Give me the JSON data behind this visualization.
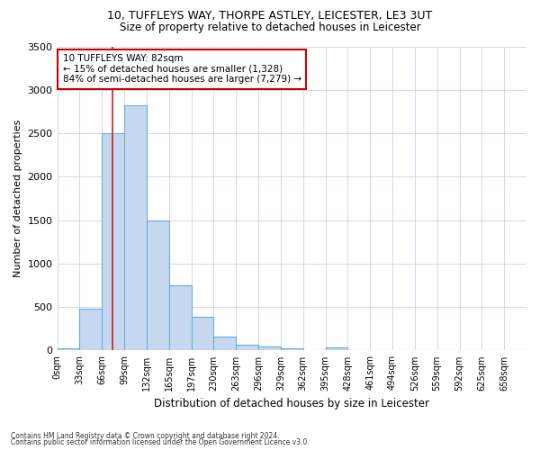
{
  "title_line1": "10, TUFFLEYS WAY, THORPE ASTLEY, LEICESTER, LE3 3UT",
  "title_line2": "Size of property relative to detached houses in Leicester",
  "xlabel": "Distribution of detached houses by size in Leicester",
  "ylabel": "Number of detached properties",
  "bar_labels": [
    "0sqm",
    "33sqm",
    "66sqm",
    "99sqm",
    "132sqm",
    "165sqm",
    "197sqm",
    "230sqm",
    "263sqm",
    "296sqm",
    "329sqm",
    "362sqm",
    "395sqm",
    "428sqm",
    "461sqm",
    "494sqm",
    "526sqm",
    "559sqm",
    "592sqm",
    "625sqm",
    "658sqm"
  ],
  "bar_values": [
    20,
    480,
    2500,
    2820,
    1500,
    750,
    390,
    155,
    70,
    50,
    30,
    0,
    40,
    0,
    0,
    0,
    0,
    0,
    0,
    0,
    0
  ],
  "bar_color": "#c5d8f0",
  "bar_edge_color": "#6aadd5",
  "background_color": "#ffffff",
  "grid_color": "#d0d8e8",
  "red_line_x": 82,
  "bin_width": 33,
  "annotation_title": "10 TUFFLEYS WAY: 82sqm",
  "annotation_line2": "← 15% of detached houses are smaller (1,328)",
  "annotation_line3": "84% of semi-detached houses are larger (7,279) →",
  "annotation_box_color": "#ffffff",
  "annotation_box_edge": "#cc0000",
  "ylim": [
    0,
    3500
  ],
  "yticks": [
    0,
    500,
    1000,
    1500,
    2000,
    2500,
    3000,
    3500
  ],
  "footnote1": "Contains HM Land Registry data © Crown copyright and database right 2024.",
  "footnote2": "Contains public sector information licensed under the Open Government Licence v3.0."
}
